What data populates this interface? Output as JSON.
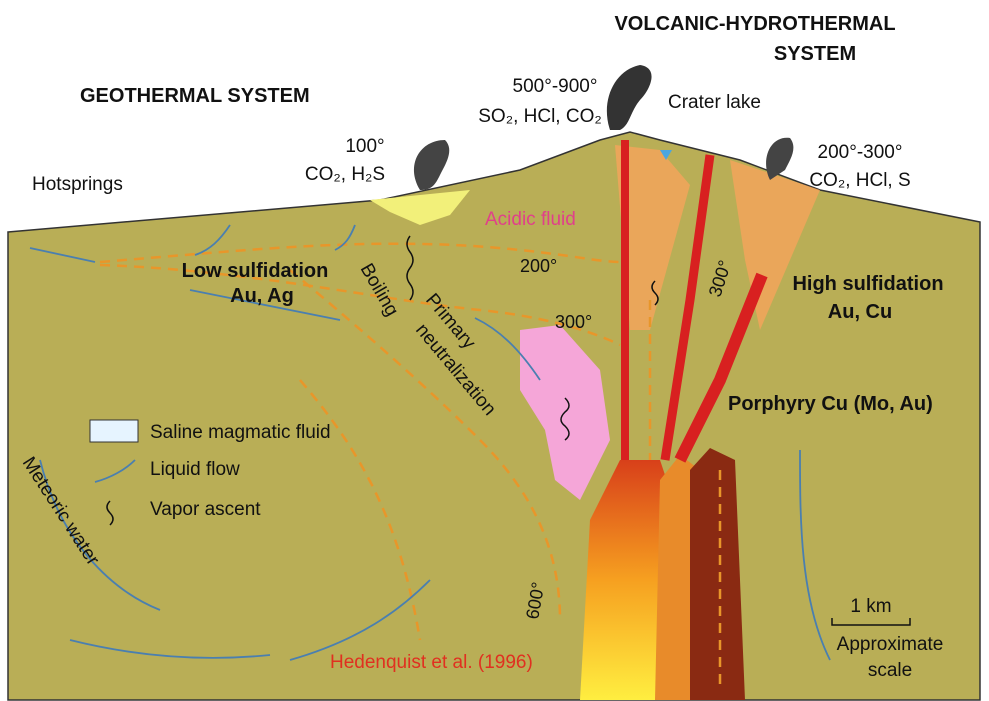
{
  "titles": {
    "geothermal": "GEOTHERMAL SYSTEM",
    "volcanic": [
      "VOLCANIC-HYDROTHERMAL",
      "SYSTEM"
    ]
  },
  "vents": {
    "summit": {
      "temp": "500°-900°",
      "gases": "SO₂, HCl, CO₂"
    },
    "left": {
      "temp": "100°",
      "gases": "CO₂, H₂S"
    },
    "right": {
      "temp": "200°-300°",
      "gases": "CO₂, HCl, S"
    }
  },
  "features": {
    "crater_lake": "Crater lake",
    "hotsprings": "Hotsprings",
    "acidic_fluid": "Acidic fluid",
    "low_sulfidation": [
      "Low sulfidation",
      "Au, Ag"
    ],
    "boiling": "Boiling",
    "primary_neutralization": [
      "Primary",
      "neutralization"
    ],
    "high_sulfidation": [
      "High sulfidation",
      "Au, Cu"
    ],
    "porphyry": "Porphyry Cu (Mo, Au)",
    "meteoric_water": "Meteoric water"
  },
  "isotherms": [
    "200°",
    "300°",
    "300°",
    "600°"
  ],
  "legend": [
    "Saline magmatic fluid",
    "Liquid flow",
    "Vapor ascent"
  ],
  "scale": {
    "length": "1 km",
    "caption": [
      "Approximate",
      "scale"
    ]
  },
  "citation": "Hedenquist et al. (1996)"
}
